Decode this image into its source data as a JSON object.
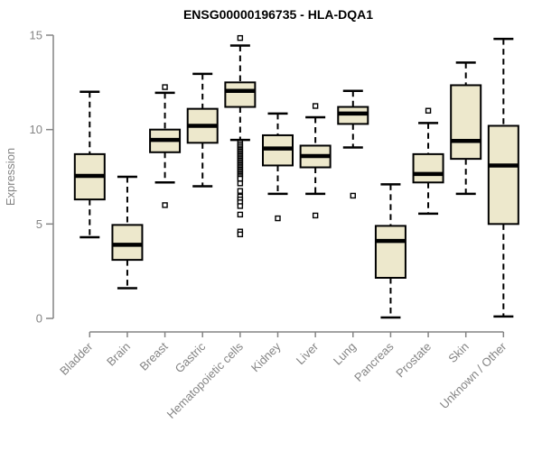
{
  "chart_data": {
    "type": "boxplot",
    "title": "ENSG00000196735 - HLA-DQA1",
    "xlabel": "",
    "ylabel": "Expression",
    "ylim": [
      0,
      15
    ],
    "yticks": [
      0,
      5,
      10,
      15
    ],
    "grid": false,
    "legend": "none",
    "colors": {
      "box_fill": "#ede8cc",
      "box_border": "#000000",
      "median": "#000000",
      "axis": "#848484",
      "background": "#ffffff"
    },
    "categories": [
      "Bladder",
      "Brain",
      "Breast",
      "Gastric",
      "Hematopoietic cells",
      "Kidney",
      "Liver",
      "Lung",
      "Pancreas",
      "Prostate",
      "Skin",
      "Unknown / Other"
    ],
    "series": [
      {
        "category": "Bladder",
        "whisker_low": 4.3,
        "q1": 6.3,
        "median": 7.55,
        "q3": 8.7,
        "whisker_high": 12.0,
        "outliers": []
      },
      {
        "category": "Brain",
        "whisker_low": 1.6,
        "q1": 3.1,
        "median": 3.9,
        "q3": 4.95,
        "whisker_high": 7.5,
        "outliers": []
      },
      {
        "category": "Breast",
        "whisker_low": 7.2,
        "q1": 8.8,
        "median": 9.45,
        "q3": 10.0,
        "whisker_high": 11.95,
        "outliers": [
          12.25,
          6.0
        ]
      },
      {
        "category": "Gastric",
        "whisker_low": 7.0,
        "q1": 9.3,
        "median": 10.2,
        "q3": 11.1,
        "whisker_high": 12.95,
        "outliers": []
      },
      {
        "category": "Hematopoietic cells",
        "whisker_low": 9.45,
        "q1": 11.2,
        "median": 12.05,
        "q3": 12.5,
        "whisker_high": 14.45,
        "outliers": [
          14.85,
          9.3,
          9.2,
          9.1,
          9.0,
          8.92,
          8.84,
          8.76,
          8.68,
          8.6,
          8.52,
          8.44,
          8.36,
          8.28,
          8.2,
          8.12,
          8.04,
          7.96,
          7.88,
          7.8,
          7.72,
          7.64,
          7.56,
          7.48,
          7.4,
          7.15,
          6.75,
          6.45,
          6.3,
          6.15,
          5.95,
          5.5,
          4.6,
          4.45
        ]
      },
      {
        "category": "Kidney",
        "whisker_low": 6.6,
        "q1": 8.1,
        "median": 9.0,
        "q3": 9.7,
        "whisker_high": 10.85,
        "outliers": [
          5.3
        ]
      },
      {
        "category": "Liver",
        "whisker_low": 6.6,
        "q1": 8.0,
        "median": 8.6,
        "q3": 9.15,
        "whisker_high": 10.65,
        "outliers": [
          11.25,
          5.45
        ]
      },
      {
        "category": "Lung",
        "whisker_low": 9.05,
        "q1": 10.3,
        "median": 10.85,
        "q3": 11.2,
        "whisker_high": 12.05,
        "outliers": [
          6.5
        ]
      },
      {
        "category": "Pancreas",
        "whisker_low": 0.05,
        "q1": 2.15,
        "median": 4.1,
        "q3": 4.9,
        "whisker_high": 7.1,
        "outliers": []
      },
      {
        "category": "Prostate",
        "whisker_low": 5.55,
        "q1": 7.2,
        "median": 7.65,
        "q3": 8.7,
        "whisker_high": 10.35,
        "outliers": [
          11.0
        ]
      },
      {
        "category": "Skin",
        "whisker_low": 6.6,
        "q1": 8.45,
        "median": 9.4,
        "q3": 12.35,
        "whisker_high": 13.55,
        "outliers": []
      },
      {
        "category": "Unknown / Other",
        "whisker_low": 0.1,
        "q1": 5.0,
        "median": 8.1,
        "q3": 10.2,
        "whisker_high": 14.8,
        "outliers": []
      }
    ]
  }
}
